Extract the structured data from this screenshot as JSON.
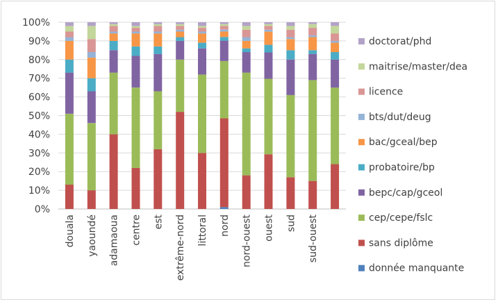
{
  "chart_data": {
    "type": "bar",
    "stacked": true,
    "normalized": true,
    "title": "",
    "xlabel": "",
    "ylabel": "",
    "ylim": [
      0,
      100
    ],
    "y_ticks": [
      "0%",
      "10%",
      "20%",
      "30%",
      "40%",
      "50%",
      "60%",
      "70%",
      "80%",
      "90%",
      "100%"
    ],
    "grid": true,
    "legend_position": "right",
    "categories": [
      "douala",
      "yaoundé",
      "adamaoua",
      "centre",
      "est",
      "extrême-nord",
      "littoral",
      "nord",
      "nord-ouest",
      "ouest",
      "sud",
      "sud-ouest",
      ""
    ],
    "series": [
      {
        "name": "donnée manquante",
        "color": "#4f81bd",
        "values": [
          0,
          0,
          0,
          0,
          0,
          0,
          0,
          1,
          0,
          0,
          0,
          0,
          0
        ]
      },
      {
        "name": "sans diplôme",
        "color": "#c0504d",
        "values": [
          13,
          10,
          40,
          22,
          32,
          52,
          30,
          48,
          18,
          29,
          17,
          15,
          24
        ]
      },
      {
        "name": "cep/cepe/fslc",
        "color": "#9bbb59",
        "values": [
          38,
          36,
          33,
          43,
          31,
          28,
          42,
          31,
          55,
          40,
          44,
          54,
          41
        ]
      },
      {
        "name": "bepc/cap/gceol",
        "color": "#8064a2",
        "values": [
          22,
          17,
          12,
          17,
          20,
          10,
          14,
          11,
          11,
          14,
          19,
          14,
          15
        ]
      },
      {
        "name": "probatoire/bp",
        "color": "#4bacc6",
        "values": [
          7,
          7,
          5,
          5,
          4,
          2,
          3,
          2,
          2,
          4,
          5,
          2,
          4
        ]
      },
      {
        "name": "bac/gceal/bep",
        "color": "#f79646",
        "values": [
          10,
          11,
          4,
          7,
          7,
          3,
          5,
          3,
          4,
          7,
          6,
          7,
          5
        ]
      },
      {
        "name": "bts/dut/deug",
        "color": "#95b3d7",
        "values": [
          2,
          3,
          1,
          1,
          1,
          1,
          1,
          1,
          2,
          1,
          1,
          1,
          1
        ]
      },
      {
        "name": "licence",
        "color": "#d99694",
        "values": [
          3,
          7,
          3,
          2,
          3,
          2,
          2,
          2,
          4,
          2,
          4,
          4,
          4
        ]
      },
      {
        "name": "maitrise/master/dea",
        "color": "#c3d69b",
        "values": [
          3,
          7,
          1,
          1,
          1,
          1,
          1,
          1,
          2,
          1,
          2,
          2,
          4
        ]
      },
      {
        "name": "doctorat/phd",
        "color": "#b2a2c7",
        "values": [
          2,
          2,
          1,
          2,
          1,
          1,
          2,
          1,
          2,
          1,
          2,
          1,
          2
        ]
      }
    ]
  }
}
